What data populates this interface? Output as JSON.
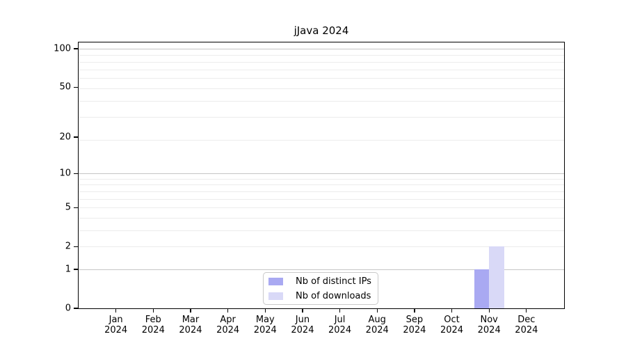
{
  "figure": {
    "title": "jJava 2024"
  },
  "chart_data": {
    "type": "bar",
    "title": "jJava 2024",
    "categories": [
      "Jan 2024",
      "Feb 2024",
      "Mar 2024",
      "Apr 2024",
      "May 2024",
      "Jun 2024",
      "Jul 2024",
      "Aug 2024",
      "Sep 2024",
      "Oct 2024",
      "Nov 2024",
      "Dec 2024"
    ],
    "series": [
      {
        "name": "Nb of distinct IPs",
        "color": "#a9a9f2",
        "values": [
          0,
          0,
          0,
          0,
          0,
          0,
          0,
          0,
          0,
          0,
          1,
          0
        ]
      },
      {
        "name": "Nb of downloads",
        "color": "#d9d9f7",
        "values": [
          0,
          0,
          0,
          0,
          0,
          0,
          0,
          0,
          0,
          0,
          2,
          0
        ]
      }
    ],
    "xlabel": "",
    "ylabel": "",
    "yscale": "log1p",
    "yticks": [
      0,
      1,
      2,
      5,
      10,
      20,
      50,
      100
    ],
    "major_grid_values": [
      1,
      10,
      100
    ],
    "minor_grid_log_positions": [
      3,
      4,
      5,
      6,
      7,
      8,
      9,
      10,
      20,
      30,
      40,
      50,
      60,
      70,
      80,
      90
    ],
    "ylim": [
      0,
      112
    ],
    "grid": true,
    "legend_position": "lower center",
    "colors": {
      "major_grid": "#c6c6c6",
      "minor_grid": "#ececec",
      "axis": "#000000",
      "text": "#000000"
    }
  }
}
